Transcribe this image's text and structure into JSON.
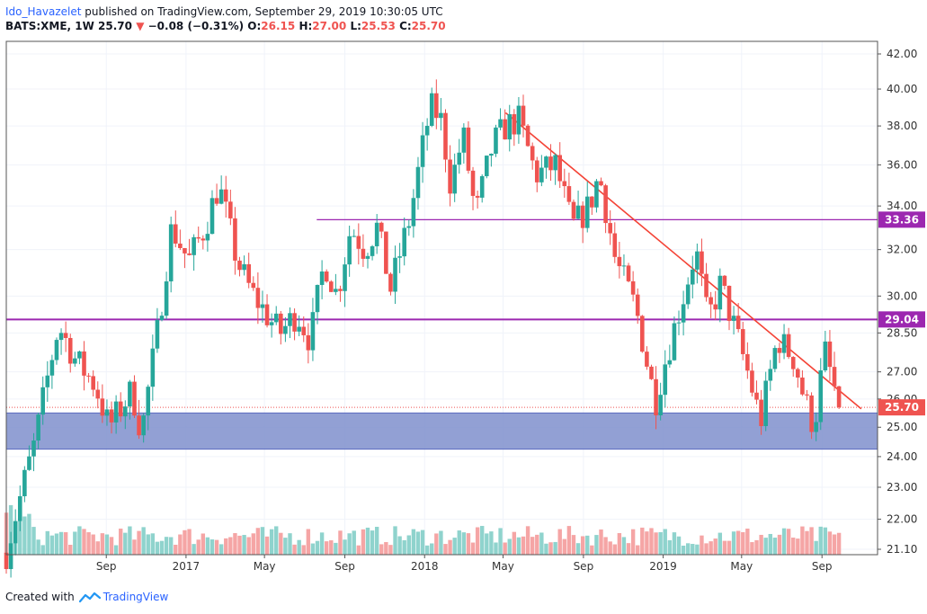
{
  "header": {
    "author": "Ido_Havazelet",
    "published": "published on TradingView.com, September 29, 2019 10:30:05 UTC",
    "symbol": "BATS:XME, 1W",
    "last": "25.70",
    "change_arrow": "▼",
    "change": "−0.08 (−0.31%)",
    "o_label": "O:",
    "o": "26.15",
    "h_label": "H:",
    "h": "27.00",
    "l_label": "L:",
    "l": "25.53",
    "c_label": "C:",
    "c": "25.70"
  },
  "footer": {
    "created_with": "Created with",
    "brand": "TradingView",
    "logo_icon": "tradingview-logo-icon"
  },
  "colors": {
    "up": "#26a69a",
    "down": "#ef5350",
    "vol_up": "#8fd3cd",
    "vol_down": "#f5a5a5",
    "zone": "#7f8fcc",
    "level": "#9c27b0",
    "trend": "#f44336",
    "grid": "#f0f3fa"
  },
  "chart_data": {
    "type": "candlestick",
    "symbol": "BATS:XME",
    "interval": "1W",
    "price_scale": "log",
    "y_ticks": [
      42.0,
      40.0,
      38.0,
      36.0,
      34.0,
      32.0,
      30.0,
      28.5,
      27.0,
      26.0,
      25.0,
      24.0,
      23.0,
      22.0,
      21.1
    ],
    "x_ticks": [
      "Sep",
      "2017",
      "May",
      "Sep",
      "2018",
      "May",
      "Sep",
      "2019",
      "May",
      "Sep"
    ],
    "x_tick_dates": [
      "2016-09-01",
      "2017-01-01",
      "2017-05-01",
      "2017-09-01",
      "2018-01-01",
      "2018-05-01",
      "2018-09-01",
      "2019-01-01",
      "2019-05-01",
      "2019-09-01"
    ],
    "price_labels": [
      {
        "text": "33.36",
        "value": 33.36,
        "color": "#9c27b0"
      },
      {
        "text": "29.04",
        "value": 29.04,
        "color": "#9c27b0"
      },
      {
        "text": "25.70",
        "value": 25.7,
        "color": "#ef5350"
      }
    ],
    "horizontal_lines": [
      {
        "value": 33.36,
        "from": "2017-07-20"
      },
      {
        "value": 29.04,
        "from": "2016-04-01"
      }
    ],
    "support_zone": {
      "low": 24.25,
      "high": 25.5,
      "from": "2016-04-01"
    },
    "trendline": {
      "start": [
        "2018-05-05",
        38.7
      ],
      "end": [
        "2019-10-31",
        25.65
      ]
    },
    "last_close": 25.7,
    "ohlc_knots": [
      [
        "2016-04-01",
        21.0
      ],
      [
        "2016-05-15",
        24.5
      ],
      [
        "2016-06-20",
        28.8
      ],
      [
        "2016-07-15",
        27.5
      ],
      [
        "2016-08-15",
        26.5
      ],
      [
        "2016-09-05",
        25.0
      ],
      [
        "2016-10-10",
        26.3
      ],
      [
        "2016-10-25",
        24.8
      ],
      [
        "2016-11-20",
        28.8
      ],
      [
        "2016-12-10",
        33.0
      ],
      [
        "2017-01-05",
        31.5
      ],
      [
        "2017-01-30",
        33.0
      ],
      [
        "2017-02-20",
        35.0
      ],
      [
        "2017-03-20",
        31.5
      ],
      [
        "2017-04-10",
        30.2
      ],
      [
        "2017-05-10",
        29.0
      ],
      [
        "2017-05-25",
        28.5
      ],
      [
        "2017-06-20",
        29.3
      ],
      [
        "2017-07-10",
        28.2
      ],
      [
        "2017-08-01",
        31.5
      ],
      [
        "2017-08-20",
        30.0
      ],
      [
        "2017-09-10",
        33.0
      ],
      [
        "2017-10-01",
        32.0
      ],
      [
        "2017-10-20",
        33.0
      ],
      [
        "2017-11-10",
        30.3
      ],
      [
        "2017-12-10",
        33.5
      ],
      [
        "2018-01-10",
        39.0
      ],
      [
        "2018-01-25",
        38.5
      ],
      [
        "2018-02-10",
        35.0
      ],
      [
        "2018-03-01",
        37.5
      ],
      [
        "2018-03-20",
        33.5
      ],
      [
        "2018-04-15",
        37.0
      ],
      [
        "2018-05-05",
        38.0
      ],
      [
        "2018-05-25",
        38.3
      ],
      [
        "2018-06-20",
        35.5
      ],
      [
        "2018-07-20",
        36.0
      ],
      [
        "2018-08-15",
        33.0
      ],
      [
        "2018-09-10",
        34.0
      ],
      [
        "2018-09-25",
        35.5
      ],
      [
        "2018-10-20",
        31.5
      ],
      [
        "2018-11-20",
        29.5
      ],
      [
        "2018-12-10",
        27.0
      ],
      [
        "2018-12-20",
        25.9
      ],
      [
        "2019-01-05",
        27.5
      ],
      [
        "2019-02-01",
        30.0
      ],
      [
        "2019-02-20",
        32.0
      ],
      [
        "2019-03-10",
        29.0
      ],
      [
        "2019-03-30",
        30.5
      ],
      [
        "2019-04-20",
        28.7
      ],
      [
        "2019-05-10",
        27.0
      ],
      [
        "2019-05-30",
        25.2
      ],
      [
        "2019-06-25",
        28.3
      ],
      [
        "2019-07-20",
        27.5
      ],
      [
        "2019-08-05",
        26.0
      ],
      [
        "2019-08-20",
        25.0
      ],
      [
        "2019-09-05",
        27.8
      ],
      [
        "2019-09-27",
        25.7
      ]
    ]
  }
}
